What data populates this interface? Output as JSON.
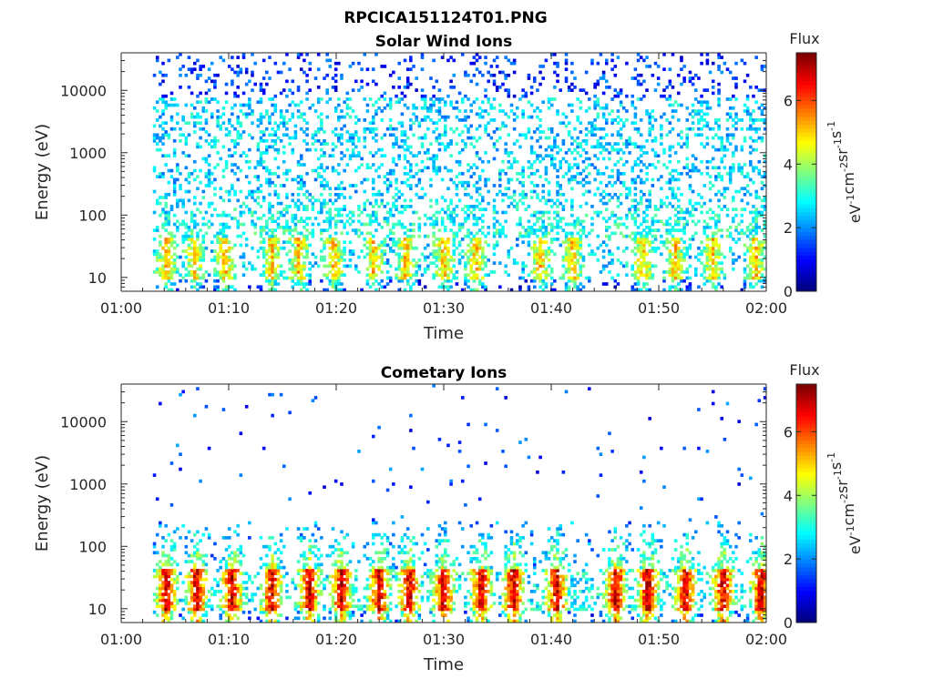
{
  "figure": {
    "title": "RPCICA151124T01.PNG",
    "colorbar": {
      "title": "Flux",
      "unit_base": "eV",
      "unit_parts": [
        {
          "text": "eV",
          "sup": "-1"
        },
        {
          "text": "cm",
          "sup": "-2"
        },
        {
          "text": "sr",
          "sup": "-1"
        },
        {
          "text": "s",
          "sup": "-1"
        }
      ],
      "range": [
        0,
        7.5
      ],
      "ticks": [
        "0",
        "2",
        "4",
        "6"
      ],
      "colormap": "jet"
    }
  },
  "chart_data": [
    {
      "type": "heatmap",
      "title": "Solar Wind Ions",
      "xlabel": "Time",
      "ylabel": "Energy (eV)",
      "x_ticks": [
        "01:00",
        "01:10",
        "01:20",
        "01:30",
        "01:40",
        "01:50",
        "02:00"
      ],
      "x_range_minutes": [
        0,
        60
      ],
      "y_scale": "log",
      "y_ticks": [
        "10",
        "100",
        "1000",
        "10000"
      ],
      "y_range": [
        6,
        40000
      ],
      "data_start_minute": 3,
      "bursts_minute": [
        4.2,
        6.8,
        9.7,
        14,
        16.5,
        19.8,
        23.5,
        26.5,
        30,
        33,
        39,
        42,
        48.5,
        51.5,
        55,
        59
      ],
      "low_band_flux": 4.5,
      "high_energy_flux": 2.5
    },
    {
      "type": "heatmap",
      "title": "Cometary Ions",
      "xlabel": "Time",
      "ylabel": "Energy (eV)",
      "x_ticks": [
        "01:00",
        "01:10",
        "01:20",
        "01:30",
        "01:40",
        "01:50",
        "02:00"
      ],
      "x_range_minutes": [
        0,
        60
      ],
      "y_scale": "log",
      "y_ticks": [
        "10",
        "100",
        "1000",
        "10000"
      ],
      "y_range": [
        6,
        40000
      ],
      "data_start_minute": 3,
      "bursts_minute": [
        4.2,
        7,
        10.3,
        14,
        17.5,
        20.5,
        24,
        26.8,
        30,
        33.5,
        36.5,
        40.5,
        46,
        49,
        52.5,
        56,
        59.5
      ],
      "low_band_flux": 6.8,
      "high_energy_flux": 1.2
    }
  ]
}
